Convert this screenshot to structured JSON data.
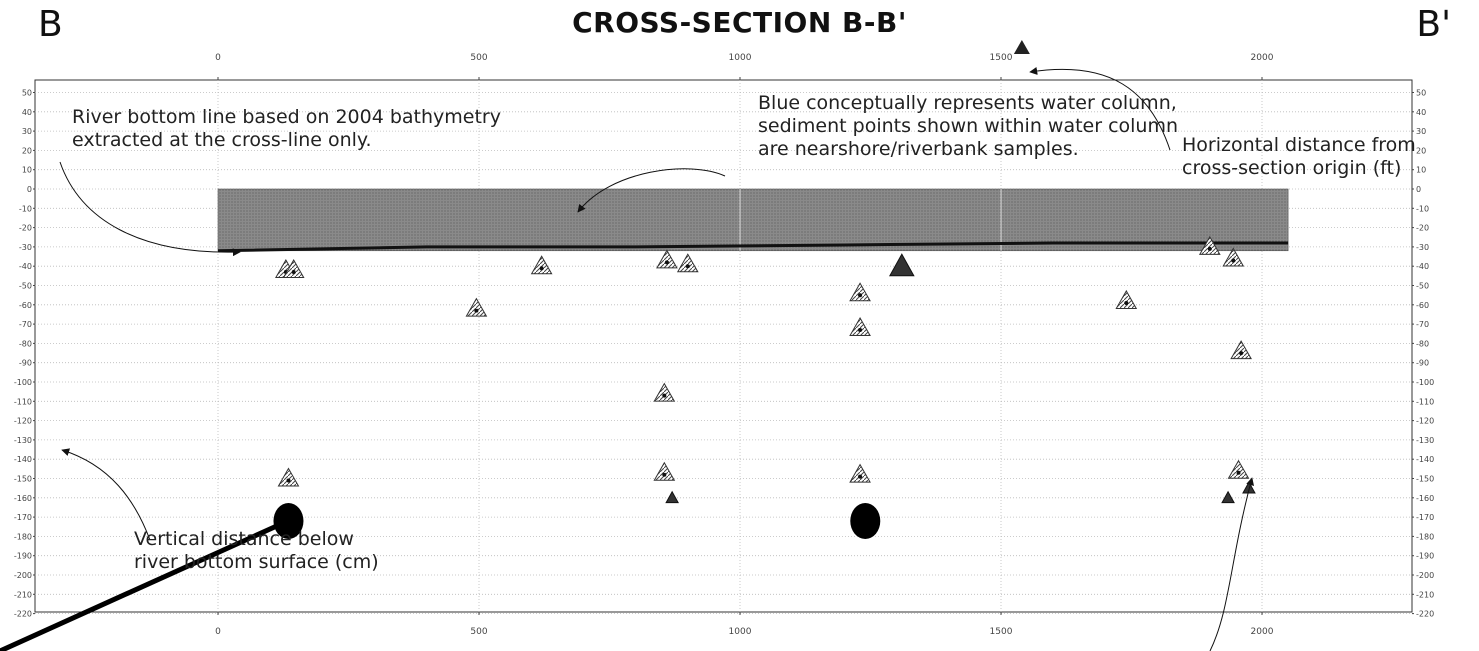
{
  "chart_data": {
    "type": "scatter",
    "title": "CROSS-SECTION B-B'",
    "corner_left": "B",
    "corner_right": "B'",
    "xlabel": "",
    "ylabel": "",
    "xlim": [
      -380,
      2130
    ],
    "ylim": [
      -230,
      60
    ],
    "x_ticks": [
      0,
      500,
      1000,
      1500,
      2000
    ],
    "y_ticks": [
      50,
      40,
      30,
      20,
      10,
      0,
      -10,
      -20,
      -30,
      -40,
      -50,
      -60,
      -70,
      -80,
      -90,
      -100,
      -110,
      -120,
      -130,
      -140,
      -150,
      -160,
      -170,
      -180,
      -190,
      -200,
      -210,
      -220
    ],
    "grid": true,
    "water_column": {
      "x_start": 0,
      "x_end": 2050,
      "top": 0,
      "bottom": -32,
      "color": "#7f7f7f"
    },
    "river_bottom_line": [
      [
        0,
        -32
      ],
      [
        400,
        -30
      ],
      [
        800,
        -30
      ],
      [
        1200,
        -29
      ],
      [
        1600,
        -28
      ],
      [
        2050,
        -28
      ]
    ],
    "hatched_triangles": [
      {
        "x": 130,
        "y": -42
      },
      {
        "x": 145,
        "y": -42
      },
      {
        "x": 620,
        "y": -40
      },
      {
        "x": 860,
        "y": -37
      },
      {
        "x": 900,
        "y": -39
      },
      {
        "x": 1900,
        "y": -30
      },
      {
        "x": 1945,
        "y": -36
      },
      {
        "x": 495,
        "y": -62
      },
      {
        "x": 1230,
        "y": -54
      },
      {
        "x": 1740,
        "y": -58
      },
      {
        "x": 1230,
        "y": -72
      },
      {
        "x": 1960,
        "y": -84
      },
      {
        "x": 855,
        "y": -106
      },
      {
        "x": 135,
        "y": -150
      },
      {
        "x": 855,
        "y": -147
      },
      {
        "x": 1230,
        "y": -148
      },
      {
        "x": 1955,
        "y": -146
      }
    ],
    "solid_triangles": [
      {
        "x": 1310,
        "y": -40,
        "size": "large"
      },
      {
        "x": 870,
        "y": -160,
        "size": "small"
      },
      {
        "x": 1935,
        "y": -160,
        "size": "small"
      },
      {
        "x": 1975,
        "y": -155,
        "size": "small"
      }
    ],
    "circles": [
      {
        "x": 135,
        "y": -172
      },
      {
        "x": 1240,
        "y": -172
      }
    ],
    "annotations": {
      "river_bottom": [
        "River bottom line based on 2004 bathymetry",
        "extracted at the cross-line only."
      ],
      "water_column": [
        "Blue conceptually represents water column,",
        "sediment points shown within water column",
        "are nearshore/riverbank samples."
      ],
      "horizontal": [
        "Horizontal distance from",
        "cross-section origin (ft)"
      ],
      "vertical": [
        "Vertical distance below",
        "river bottom surface (cm)"
      ]
    }
  }
}
